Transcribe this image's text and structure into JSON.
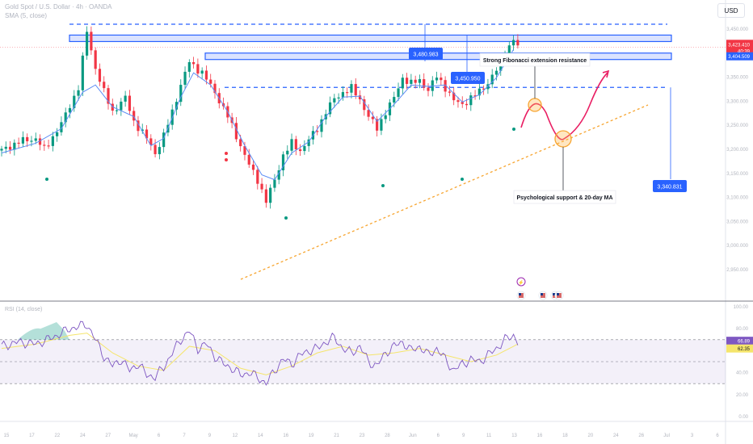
{
  "header": {
    "symbol_line": "Gold Spot / U.S. Dollar · 4h · OANDA",
    "indicator_line": "SMA (5, close)",
    "currency": "USD"
  },
  "chart_data": [
    {
      "type": "candlestick",
      "title": "Gold Spot / U.S. Dollar · 4h · OANDA",
      "y_axis_ticks": [
        "3,450.000",
        "3,400.000",
        "3,350.000",
        "3,300.000",
        "3,250.000",
        "3,200.000",
        "3,150.000",
        "3,100.000",
        "3,050.000",
        "3,000.000",
        "2,950.000"
      ],
      "ylim": [
        2950,
        3470
      ],
      "x_axis_ticks": [
        "15",
        "17",
        "22",
        "24",
        "27",
        "May",
        "6",
        "7",
        "9",
        "12",
        "14",
        "16",
        "19",
        "21",
        "23",
        "28",
        "Jun",
        "6",
        "9",
        "11",
        "13",
        "16",
        "18",
        "20",
        "24",
        "26",
        "Jul",
        "3",
        "6"
      ],
      "current_price": "3,423.410",
      "current_countdown": "40:39",
      "price_labels": {
        "sma": "3,404.509",
        "level_1": "3,480.983",
        "level_2": "3,450.950",
        "level_3": "3,340.831"
      },
      "levels": [
        3470,
        3450,
        3441,
        3423,
        3404,
        3340
      ],
      "annotations": {
        "resistance": "Strong Fibonacci extension resistance",
        "support": "Psychological support & 20-day MA"
      },
      "price_path": [
        {
          "x": 0,
          "y": 3210
        },
        {
          "x": 4,
          "y": 3228
        },
        {
          "x": 8,
          "y": 3235
        },
        {
          "x": 10,
          "y": 3212
        },
        {
          "x": 14,
          "y": 3265
        },
        {
          "x": 18,
          "y": 3340
        },
        {
          "x": 20,
          "y": 3455
        },
        {
          "x": 22,
          "y": 3380
        },
        {
          "x": 24,
          "y": 3330
        },
        {
          "x": 26,
          "y": 3290
        },
        {
          "x": 29,
          "y": 3318
        },
        {
          "x": 31,
          "y": 3270
        },
        {
          "x": 34,
          "y": 3235
        },
        {
          "x": 36,
          "y": 3205
        },
        {
          "x": 38,
          "y": 3240
        },
        {
          "x": 40,
          "y": 3290
        },
        {
          "x": 42,
          "y": 3345
        },
        {
          "x": 44,
          "y": 3392
        },
        {
          "x": 47,
          "y": 3370
        },
        {
          "x": 50,
          "y": 3330
        },
        {
          "x": 53,
          "y": 3280
        },
        {
          "x": 56,
          "y": 3220
        },
        {
          "x": 58,
          "y": 3180
        },
        {
          "x": 60,
          "y": 3150
        },
        {
          "x": 62,
          "y": 3105
        },
        {
          "x": 64,
          "y": 3150
        },
        {
          "x": 66,
          "y": 3200
        },
        {
          "x": 68,
          "y": 3225
        },
        {
          "x": 70,
          "y": 3210
        },
        {
          "x": 72,
          "y": 3232
        },
        {
          "x": 74,
          "y": 3255
        },
        {
          "x": 76,
          "y": 3290
        },
        {
          "x": 78,
          "y": 3316
        },
        {
          "x": 80,
          "y": 3330
        },
        {
          "x": 82,
          "y": 3338
        },
        {
          "x": 84,
          "y": 3315
        },
        {
          "x": 86,
          "y": 3280
        },
        {
          "x": 88,
          "y": 3255
        },
        {
          "x": 90,
          "y": 3290
        },
        {
          "x": 92,
          "y": 3318
        },
        {
          "x": 94,
          "y": 3360
        },
        {
          "x": 96,
          "y": 3348
        },
        {
          "x": 98,
          "y": 3354
        },
        {
          "x": 100,
          "y": 3335
        },
        {
          "x": 102,
          "y": 3362
        },
        {
          "x": 104,
          "y": 3340
        },
        {
          "x": 106,
          "y": 3312
        },
        {
          "x": 108,
          "y": 3305
        },
        {
          "x": 110,
          "y": 3318
        },
        {
          "x": 112,
          "y": 3332
        },
        {
          "x": 114,
          "y": 3350
        },
        {
          "x": 116,
          "y": 3375
        },
        {
          "x": 118,
          "y": 3412
        },
        {
          "x": 120,
          "y": 3438
        },
        {
          "x": 121,
          "y": 3423
        }
      ],
      "sma_path": [
        {
          "x": 0,
          "y": 3205
        },
        {
          "x": 8,
          "y": 3225
        },
        {
          "x": 14,
          "y": 3255
        },
        {
          "x": 19,
          "y": 3330
        },
        {
          "x": 22,
          "y": 3345
        },
        {
          "x": 26,
          "y": 3300
        },
        {
          "x": 31,
          "y": 3280
        },
        {
          "x": 35,
          "y": 3220
        },
        {
          "x": 38,
          "y": 3235
        },
        {
          "x": 42,
          "y": 3320
        },
        {
          "x": 45,
          "y": 3370
        },
        {
          "x": 49,
          "y": 3345
        },
        {
          "x": 53,
          "y": 3290
        },
        {
          "x": 57,
          "y": 3220
        },
        {
          "x": 61,
          "y": 3160
        },
        {
          "x": 64,
          "y": 3150
        },
        {
          "x": 68,
          "y": 3205
        },
        {
          "x": 72,
          "y": 3228
        },
        {
          "x": 76,
          "y": 3280
        },
        {
          "x": 80,
          "y": 3320
        },
        {
          "x": 84,
          "y": 3322
        },
        {
          "x": 88,
          "y": 3270
        },
        {
          "x": 92,
          "y": 3305
        },
        {
          "x": 96,
          "y": 3345
        },
        {
          "x": 100,
          "y": 3342
        },
        {
          "x": 104,
          "y": 3345
        },
        {
          "x": 108,
          "y": 3310
        },
        {
          "x": 112,
          "y": 3325
        },
        {
          "x": 116,
          "y": 3360
        },
        {
          "x": 120,
          "y": 3418
        }
      ]
    },
    {
      "type": "line",
      "title": "RSI (14, close)",
      "y_axis_ticks": [
        "100.00",
        "80.00",
        "60.00",
        "40.00",
        "20.00",
        "0.00"
      ],
      "ylim": [
        0,
        100
      ],
      "overbought": 70,
      "midline": 50,
      "oversold": 30,
      "current_values": [
        "66.89",
        "62.35"
      ],
      "rsi": [
        {
          "x": 0,
          "y": 64
        },
        {
          "x": 4,
          "y": 68
        },
        {
          "x": 8,
          "y": 66
        },
        {
          "x": 12,
          "y": 72
        },
        {
          "x": 16,
          "y": 80
        },
        {
          "x": 20,
          "y": 84
        },
        {
          "x": 22,
          "y": 70
        },
        {
          "x": 24,
          "y": 55
        },
        {
          "x": 26,
          "y": 46
        },
        {
          "x": 28,
          "y": 52
        },
        {
          "x": 30,
          "y": 42
        },
        {
          "x": 32,
          "y": 48
        },
        {
          "x": 34,
          "y": 38
        },
        {
          "x": 36,
          "y": 36
        },
        {
          "x": 38,
          "y": 45
        },
        {
          "x": 40,
          "y": 58
        },
        {
          "x": 42,
          "y": 70
        },
        {
          "x": 44,
          "y": 78
        },
        {
          "x": 46,
          "y": 62
        },
        {
          "x": 48,
          "y": 66
        },
        {
          "x": 50,
          "y": 55
        },
        {
          "x": 52,
          "y": 48
        },
        {
          "x": 54,
          "y": 44
        },
        {
          "x": 56,
          "y": 38
        },
        {
          "x": 58,
          "y": 40
        },
        {
          "x": 60,
          "y": 36
        },
        {
          "x": 62,
          "y": 30
        },
        {
          "x": 64,
          "y": 42
        },
        {
          "x": 66,
          "y": 52
        },
        {
          "x": 68,
          "y": 48
        },
        {
          "x": 70,
          "y": 56
        },
        {
          "x": 72,
          "y": 60
        },
        {
          "x": 74,
          "y": 62
        },
        {
          "x": 76,
          "y": 68
        },
        {
          "x": 78,
          "y": 72
        },
        {
          "x": 80,
          "y": 62
        },
        {
          "x": 82,
          "y": 58
        },
        {
          "x": 84,
          "y": 64
        },
        {
          "x": 86,
          "y": 50
        },
        {
          "x": 88,
          "y": 46
        },
        {
          "x": 90,
          "y": 58
        },
        {
          "x": 92,
          "y": 64
        },
        {
          "x": 94,
          "y": 68
        },
        {
          "x": 96,
          "y": 60
        },
        {
          "x": 98,
          "y": 64
        },
        {
          "x": 100,
          "y": 56
        },
        {
          "x": 102,
          "y": 62
        },
        {
          "x": 104,
          "y": 52
        },
        {
          "x": 106,
          "y": 42
        },
        {
          "x": 108,
          "y": 48
        },
        {
          "x": 110,
          "y": 52
        },
        {
          "x": 112,
          "y": 50
        },
        {
          "x": 114,
          "y": 56
        },
        {
          "x": 116,
          "y": 62
        },
        {
          "x": 118,
          "y": 70
        },
        {
          "x": 120,
          "y": 74
        },
        {
          "x": 121,
          "y": 68
        }
      ],
      "rsi_ma": [
        {
          "x": 0,
          "y": 62
        },
        {
          "x": 8,
          "y": 66
        },
        {
          "x": 16,
          "y": 74
        },
        {
          "x": 20,
          "y": 76
        },
        {
          "x": 26,
          "y": 58
        },
        {
          "x": 32,
          "y": 46
        },
        {
          "x": 38,
          "y": 42
        },
        {
          "x": 44,
          "y": 64
        },
        {
          "x": 50,
          "y": 60
        },
        {
          "x": 56,
          "y": 44
        },
        {
          "x": 62,
          "y": 38
        },
        {
          "x": 68,
          "y": 46
        },
        {
          "x": 74,
          "y": 58
        },
        {
          "x": 80,
          "y": 64
        },
        {
          "x": 86,
          "y": 56
        },
        {
          "x": 92,
          "y": 58
        },
        {
          "x": 98,
          "y": 62
        },
        {
          "x": 104,
          "y": 56
        },
        {
          "x": 110,
          "y": 50
        },
        {
          "x": 116,
          "y": 56
        },
        {
          "x": 121,
          "y": 66
        }
      ]
    }
  ]
}
